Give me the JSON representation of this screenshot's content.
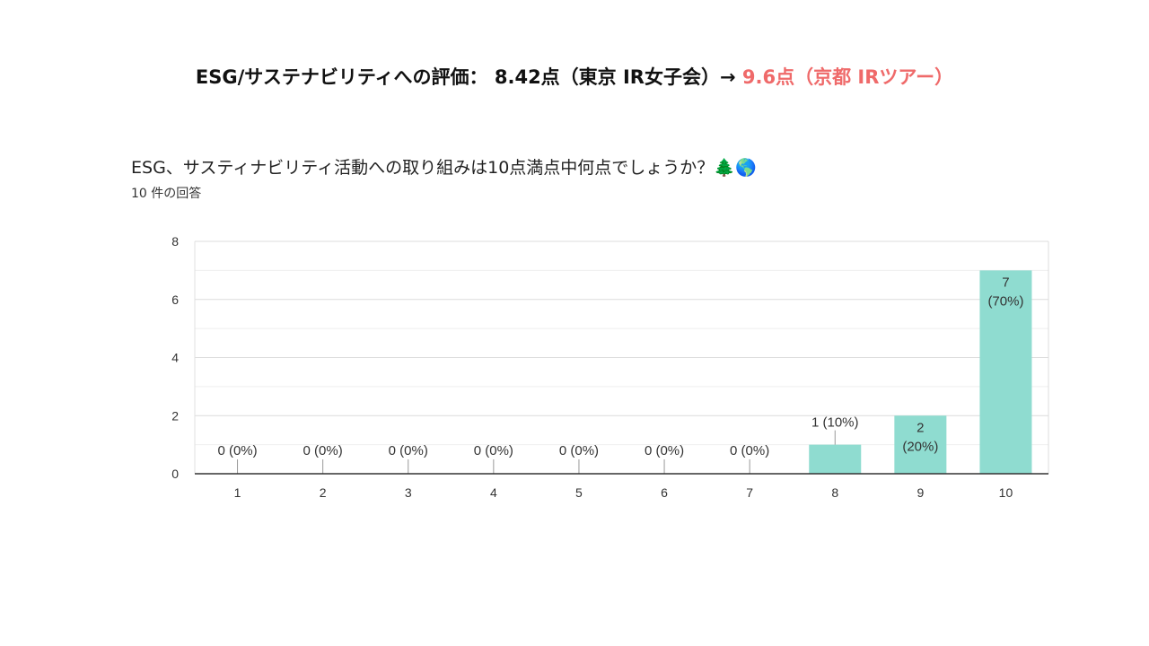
{
  "headline": {
    "prefix": "ESG/サステナビリティへの評価： 8.42点（東京 IR女子会）→ ",
    "highlight": "9.6点（京都 IRツアー）"
  },
  "question": {
    "title": "ESG、サスティナビリティ活動への取り組みは10点満点中何点でしょうか？🌲🌎",
    "response_count": "10 件の回答"
  },
  "chart_data": {
    "type": "bar",
    "categories": [
      "1",
      "2",
      "3",
      "4",
      "5",
      "6",
      "7",
      "8",
      "9",
      "10"
    ],
    "values": [
      0,
      0,
      0,
      0,
      0,
      0,
      0,
      1,
      2,
      7
    ],
    "labels": [
      "0 (0%)",
      "0 (0%)",
      "0 (0%)",
      "0 (0%)",
      "0 (0%)",
      "0 (0%)",
      "0 (0%)",
      "1 (10%)",
      "2\n(20%)",
      "7\n(70%)"
    ],
    "ylim": [
      0,
      8
    ],
    "yticks": [
      "0",
      "2",
      "4",
      "6",
      "8"
    ],
    "grid": true,
    "bar_color": "#8fdcd0"
  }
}
